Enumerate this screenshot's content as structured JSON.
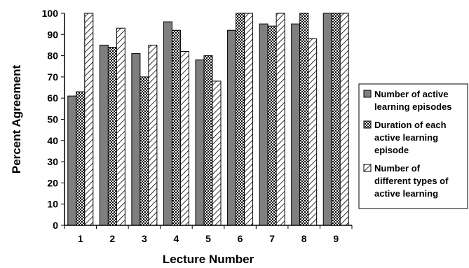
{
  "chart_data": {
    "type": "bar",
    "title": "",
    "xlabel": "Lecture Number",
    "ylabel": "Percent  Agreement",
    "categories": [
      "1",
      "2",
      "3",
      "4",
      "5",
      "6",
      "7",
      "8",
      "9"
    ],
    "ylim": [
      0,
      100
    ],
    "yticks": [
      "0",
      "10",
      "20",
      "30",
      "40",
      "50",
      "60",
      "70",
      "80",
      "90",
      "100"
    ],
    "grid": false,
    "legend_position": "right",
    "series": [
      {
        "name_lines": [
          "Number of active",
          "learning episodes"
        ],
        "pattern": "solid-gray",
        "values": [
          61,
          85,
          81,
          96,
          78,
          92,
          95,
          95,
          100
        ]
      },
      {
        "name_lines": [
          "Duration of each",
          "active learning",
          "episode"
        ],
        "pattern": "checkered",
        "values": [
          63,
          84,
          70,
          92,
          80,
          100,
          94,
          100,
          100
        ]
      },
      {
        "name_lines": [
          "Number of",
          "different types of",
          "active learning"
        ],
        "pattern": "diagonal-hatch",
        "values": [
          100,
          93,
          85,
          82,
          68,
          100,
          100,
          88,
          100
        ]
      }
    ]
  }
}
